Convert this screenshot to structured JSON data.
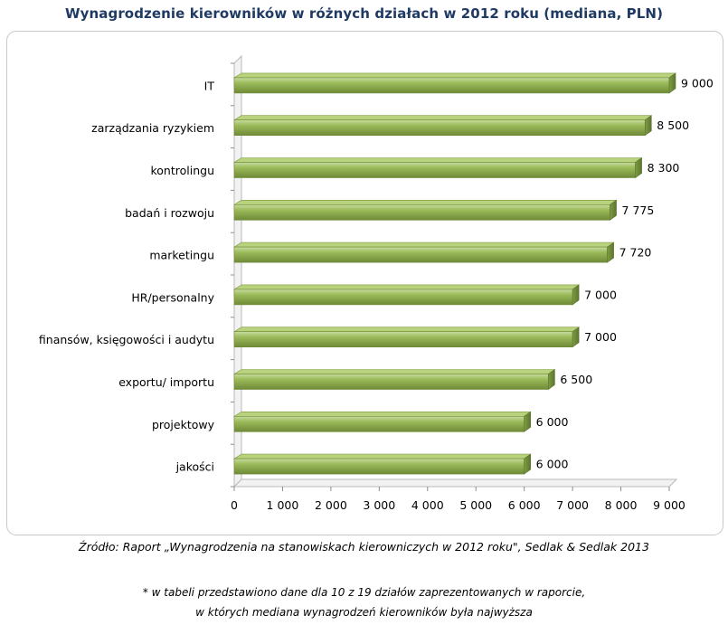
{
  "chart_data": {
    "type": "bar",
    "orientation": "horizontal",
    "title": "Wynagrodzenie kierowników w różnych działach w 2012 roku (mediana, PLN)",
    "categories": [
      "IT",
      "zarządzania ryzykiem",
      "kontrolingu",
      "badań i rozwoju",
      "marketingu",
      "HR/personalny",
      "finansów, księgowości i audytu",
      "exportu/ importu",
      "projektowy",
      "jakości"
    ],
    "values": [
      9000,
      8500,
      8300,
      7775,
      7720,
      7000,
      7000,
      6500,
      6000,
      6000
    ],
    "value_labels": [
      "9 000",
      "8 500",
      "8 300",
      "7 775",
      "7 720",
      "7 000",
      "7 000",
      "6 500",
      "6 000",
      "6 000"
    ],
    "xlim": [
      0,
      9000
    ],
    "ticks": [
      0,
      1000,
      2000,
      3000,
      4000,
      5000,
      6000,
      7000,
      8000,
      9000
    ],
    "tick_labels": [
      "0",
      "1 000",
      "2 000",
      "3 000",
      "4 000",
      "5 000",
      "6 000",
      "7 000",
      "8 000",
      "9 000"
    ],
    "grid": false,
    "bar_color": "#9bbb59"
  },
  "footer": {
    "source": "Źródło: Raport „Wynagrodzenia na stanowiskach kierowniczych  w 2012 roku\", Sedlak & Sedlak 2013",
    "note_line1": "* w tabeli przedstawiono  dane dla 10 z 19 działów zaprezentowanych  w raporcie,",
    "note_line2": "w których  mediana wynagrodzeń  kierowników  była najwyższa"
  }
}
